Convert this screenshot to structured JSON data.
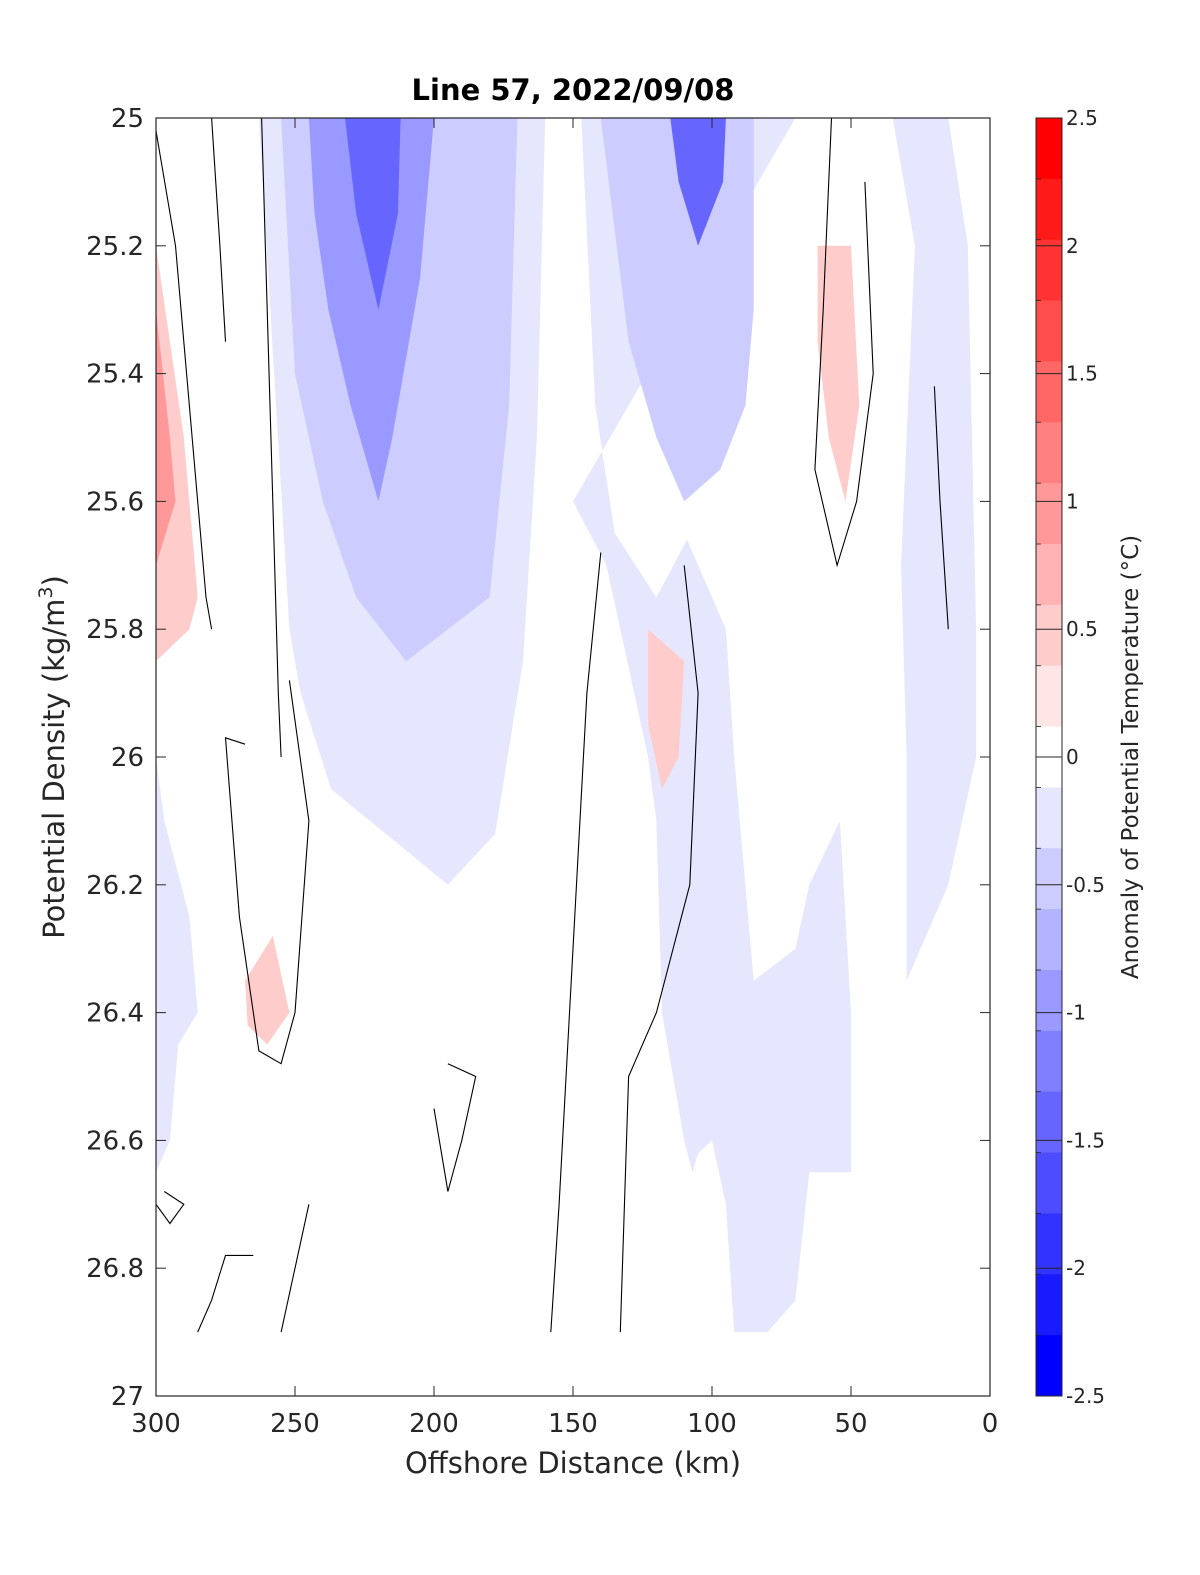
{
  "chart_data": {
    "type": "heatmap",
    "subtype": "filled-contour",
    "title": "Line 57, 2022/09/08",
    "xlabel": "Offshore Distance (km)",
    "ylabel_main": "Potential Density (kg/m",
    "ylabel_sup": "3",
    "ylabel_close": ")",
    "colorbar_label": "Anomaly of Potential Temperature (°C)",
    "xlim": [
      300,
      0
    ],
    "x_reversed": true,
    "ylim": [
      25,
      27
    ],
    "y_reversed": true,
    "x_ticks": [
      300,
      250,
      200,
      150,
      100,
      50,
      0
    ],
    "x_tick_labels": [
      "300",
      "250",
      "200",
      "150",
      "100",
      "50",
      "0"
    ],
    "y_ticks": [
      25,
      25.2,
      25.4,
      25.6,
      25.8,
      26,
      26.2,
      26.4,
      26.6,
      26.8,
      27
    ],
    "y_tick_labels": [
      "25",
      "25.2",
      "25.4",
      "25.6",
      "25.8",
      "26",
      "26.2",
      "26.4",
      "26.6",
      "26.8",
      "27"
    ],
    "colorbar": {
      "range": [
        -2.5,
        2.5
      ],
      "tick_values": [
        2.5,
        2,
        1.5,
        1,
        0.5,
        0,
        -0.5,
        -1,
        -1.5,
        -2,
        -2.5
      ],
      "tick_labels": [
        "2.5",
        "2",
        "1.5",
        "1",
        "0.5",
        "0",
        "-0.5",
        "-1",
        "-1.5",
        "-2",
        "-2.5"
      ],
      "levels": [
        2.5,
        2.25,
        2,
        1.75,
        1.5,
        1.25,
        1,
        0.75,
        0.5,
        0.25,
        -0.25,
        -0.5,
        -0.75,
        -1,
        -1.25,
        -1.5,
        -1.75,
        -2,
        -2.25,
        -2.5
      ],
      "colors": [
        "#ff0000",
        "#ff1a1a",
        "#ff3333",
        "#ff4d4d",
        "#ff6666",
        "#ff8080",
        "#ff9999",
        "#ffb3b3",
        "#ffcccc",
        "#ffe6e6",
        "#ffffff",
        "#e6e6ff",
        "#ccccff",
        "#b3b3ff",
        "#9999ff",
        "#8080ff",
        "#6666ff",
        "#4d4dff",
        "#3333ff",
        "#1a1aff",
        "#0000ff"
      ]
    },
    "regions": [
      {
        "name": "offshore-cold-core",
        "value": -0.5,
        "points": [
          [
            263,
            25
          ],
          [
            160,
            25
          ],
          [
            163,
            25.5
          ],
          [
            168,
            25.85
          ],
          [
            178,
            26.12
          ],
          [
            195,
            26.2
          ],
          [
            237,
            26.05
          ],
          [
            248,
            25.9
          ],
          [
            252,
            25.8
          ]
        ]
      },
      {
        "name": "nearshore-cold-core",
        "value": -0.5,
        "points": [
          [
            70,
            25
          ],
          [
            147,
            25
          ],
          [
            142,
            25.45
          ],
          [
            135,
            25.65
          ],
          [
            120,
            25.75
          ],
          [
            109,
            25.66
          ],
          [
            95,
            25.8
          ],
          [
            92,
            26
          ],
          [
            85,
            26.35
          ],
          [
            70,
            26.3
          ],
          [
            65,
            26.2
          ],
          [
            54,
            26.1
          ],
          [
            50,
            26.4
          ],
          [
            50,
            26.65
          ],
          [
            65,
            26.65
          ],
          [
            70,
            26.85
          ],
          [
            80,
            26.9
          ],
          [
            92,
            26.9
          ],
          [
            95,
            26.7
          ],
          [
            100,
            26.6
          ],
          [
            105,
            26.62
          ],
          [
            107,
            26.65
          ],
          [
            110,
            26.6
          ],
          [
            118,
            26.4
          ],
          [
            120,
            26.1
          ],
          [
            123,
            26
          ],
          [
            138,
            25.7
          ],
          [
            150,
            25.6
          ]
        ]
      },
      {
        "name": "shelf-cold-band",
        "value": -0.5,
        "points": [
          [
            35,
            25
          ],
          [
            15,
            25
          ],
          [
            8,
            25.2
          ],
          [
            5,
            25.8
          ],
          [
            5,
            26
          ],
          [
            15,
            26.2
          ],
          [
            25,
            26.3
          ],
          [
            30,
            26.35
          ],
          [
            30,
            26.0
          ],
          [
            32,
            25.7
          ],
          [
            30,
            25.5
          ],
          [
            27,
            25.2
          ]
        ]
      },
      {
        "name": "far-offshore-cold",
        "value": -0.5,
        "points": [
          [
            300,
            26
          ],
          [
            300,
            26.65
          ],
          [
            295,
            26.6
          ],
          [
            292,
            26.45
          ],
          [
            285,
            26.4
          ],
          [
            288,
            26.25
          ],
          [
            297,
            26.1
          ]
        ]
      },
      {
        "name": "offshore-cold-mid",
        "value": -0.75,
        "points": [
          [
            255,
            25
          ],
          [
            170,
            25
          ],
          [
            173,
            25.45
          ],
          [
            180,
            25.75
          ],
          [
            195,
            25.8
          ],
          [
            210,
            25.85
          ],
          [
            228,
            25.75
          ],
          [
            240,
            25.6
          ],
          [
            245,
            25.5
          ],
          [
            250,
            25.4
          ]
        ]
      },
      {
        "name": "offshore-cold-deep",
        "value": -1.25,
        "points": [
          [
            245,
            25
          ],
          [
            200,
            25
          ],
          [
            205,
            25.25
          ],
          [
            215,
            25.5
          ],
          [
            220,
            25.6
          ],
          [
            230,
            25.45
          ],
          [
            238,
            25.3
          ],
          [
            243,
            25.15
          ]
        ]
      },
      {
        "name": "offshore-cold-center",
        "value": -1.75,
        "points": [
          [
            232,
            25
          ],
          [
            212,
            25
          ],
          [
            213,
            25.15
          ],
          [
            220,
            25.3
          ],
          [
            228,
            25.15
          ]
        ]
      },
      {
        "name": "nearshore-cold-mid",
        "value": -0.75,
        "points": [
          [
            85,
            25
          ],
          [
            140,
            25
          ],
          [
            130,
            25.35
          ],
          [
            120,
            25.5
          ],
          [
            110,
            25.6
          ],
          [
            97,
            25.55
          ],
          [
            88,
            25.45
          ],
          [
            85,
            25.3
          ]
        ]
      },
      {
        "name": "nearshore-cold-center",
        "value": -1.75,
        "points": [
          [
            115,
            25
          ],
          [
            95,
            25
          ],
          [
            96,
            25.1
          ],
          [
            105,
            25.2
          ],
          [
            112,
            25.1
          ]
        ]
      },
      {
        "name": "inshore-warm",
        "value": 0.25,
        "points": [
          [
            300,
            25.2
          ],
          [
            290,
            25.5
          ],
          [
            285,
            25.75
          ],
          [
            288,
            25.8
          ],
          [
            300,
            25.85
          ]
        ]
      },
      {
        "name": "inshore-warm-core",
        "value": 0.75,
        "points": [
          [
            300,
            25.3
          ],
          [
            295,
            25.5
          ],
          [
            293,
            25.6
          ],
          [
            300,
            25.7
          ]
        ]
      },
      {
        "name": "mid-warm-lens",
        "value": 0.25,
        "points": [
          [
            62,
            25.2
          ],
          [
            50,
            25.2
          ],
          [
            47,
            25.45
          ],
          [
            52,
            25.6
          ],
          [
            58,
            25.5
          ],
          [
            62,
            25.35
          ]
        ]
      },
      {
        "name": "deep-warm-lens",
        "value": 0.25,
        "points": [
          [
            123,
            25.8
          ],
          [
            110,
            25.85
          ],
          [
            112,
            26
          ],
          [
            118,
            26.05
          ],
          [
            123,
            25.95
          ]
        ]
      },
      {
        "name": "lower-warm-patch",
        "value": 0.25,
        "points": [
          [
            268,
            26.35
          ],
          [
            258,
            26.28
          ],
          [
            252,
            26.4
          ],
          [
            260,
            26.45
          ],
          [
            267,
            26.42
          ]
        ]
      }
    ],
    "zero_contours": [
      [
        [
          300,
          25.02
        ],
        [
          293,
          25.2
        ],
        [
          290,
          25.35
        ],
        [
          285,
          25.6
        ],
        [
          282,
          25.75
        ],
        [
          280,
          25.8
        ]
      ],
      [
        [
          280,
          25
        ],
        [
          277,
          25.2
        ],
        [
          275,
          25.35
        ]
      ],
      [
        [
          262,
          25
        ],
        [
          260,
          25.3
        ],
        [
          258,
          25.6
        ],
        [
          256,
          25.9
        ],
        [
          255,
          26.0
        ]
      ],
      [
        [
          252,
          25.88
        ],
        [
          245,
          26.1
        ],
        [
          250,
          26.4
        ],
        [
          255,
          26.48
        ],
        [
          263,
          26.46
        ],
        [
          270,
          26.25
        ],
        [
          275,
          25.97
        ],
        [
          268,
          25.98
        ]
      ],
      [
        [
          140,
          25.68
        ],
        [
          145,
          25.9
        ],
        [
          150,
          26.3
        ],
        [
          155,
          26.7
        ],
        [
          158,
          26.9
        ]
      ],
      [
        [
          110,
          25.7
        ],
        [
          105,
          25.9
        ],
        [
          108,
          26.2
        ],
        [
          120,
          26.4
        ],
        [
          130,
          26.5
        ],
        [
          133,
          26.9
        ]
      ],
      [
        [
          57,
          25
        ],
        [
          60,
          25.3
        ],
        [
          63,
          25.55
        ],
        [
          55,
          25.7
        ],
        [
          48,
          25.6
        ],
        [
          42,
          25.4
        ],
        [
          45,
          25.1
        ]
      ],
      [
        [
          20,
          25.42
        ],
        [
          18,
          25.6
        ],
        [
          15,
          25.8
        ]
      ],
      [
        [
          195,
          26.48
        ],
        [
          185,
          26.5
        ],
        [
          190,
          26.6
        ],
        [
          195,
          26.68
        ],
        [
          200,
          26.55
        ]
      ],
      [
        [
          300,
          26.7
        ],
        [
          295,
          26.73
        ],
        [
          290,
          26.7
        ],
        [
          297,
          26.68
        ]
      ],
      [
        [
          245,
          26.7
        ],
        [
          250,
          26.8
        ],
        [
          255,
          26.9
        ]
      ],
      [
        [
          265,
          26.78
        ],
        [
          275,
          26.78
        ],
        [
          280,
          26.85
        ],
        [
          285,
          26.9
        ]
      ]
    ]
  }
}
